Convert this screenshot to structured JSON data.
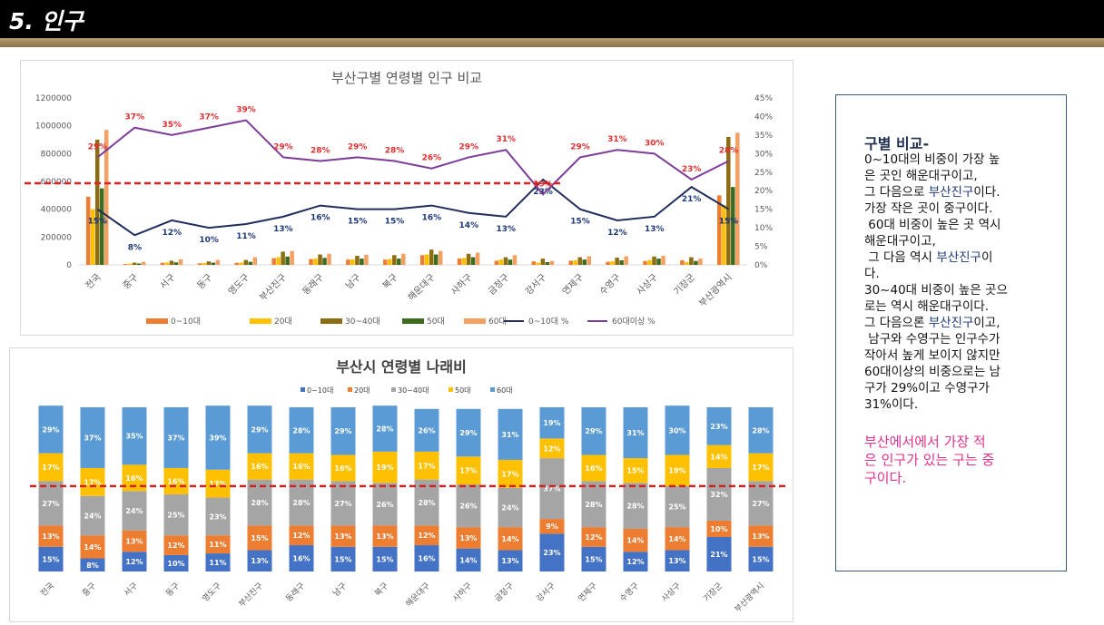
{
  "header": {
    "title": "5. 인구"
  },
  "districts": [
    "전국",
    "중구",
    "서구",
    "동구",
    "영도구",
    "부산진구",
    "동래구",
    "남구",
    "북구",
    "해운대구",
    "사하구",
    "금정구",
    "강서구",
    "연제구",
    "수영구",
    "사상구",
    "기장군",
    "부산광역시"
  ],
  "chart1": {
    "title": "부산구별 연령별 인구 비교",
    "y_left_ticks": [
      "1200000",
      "1000000",
      "800000",
      "600000",
      "400000",
      "200000",
      "0"
    ],
    "y_right_ticks": [
      "45%",
      "40%",
      "35%",
      "30%",
      "25%",
      "20%",
      "15%",
      "10%",
      "5%",
      "0%"
    ],
    "legend": [
      "0~10대",
      "20대",
      "30~40대",
      "50대",
      "60대",
      "0~10대 %",
      "60대이상 %"
    ]
  },
  "chart2": {
    "title": "부산시 연령별 나래비",
    "legend": [
      "0~10대",
      "20대",
      "30~40대",
      "50대",
      "60대"
    ]
  },
  "chart_data": [
    {
      "type": "bar",
      "title": "부산구별 연령별 인구 비교",
      "categories": [
        "전국",
        "중구",
        "서구",
        "동구",
        "영도구",
        "부산진구",
        "동래구",
        "남구",
        "북구",
        "해운대구",
        "사하구",
        "금정구",
        "강서구",
        "연제구",
        "수영구",
        "사상구",
        "기장군",
        "부산광역시"
      ],
      "ylim": [
        0,
        1200000
      ],
      "y2lim": [
        0,
        45
      ],
      "reference_line_value_right": 22,
      "series": [
        {
          "name": "0~10대",
          "color": "#ed7d31",
          "values": [
            490000,
            6000,
            15000,
            11000,
            15000,
            48000,
            42000,
            38000,
            38000,
            70000,
            45000,
            30000,
            25000,
            30000,
            22000,
            28000,
            33000,
            500000
          ]
        },
        {
          "name": "20대",
          "color": "#ffc000",
          "values": [
            400000,
            9000,
            17000,
            13000,
            16000,
            55000,
            45000,
            40000,
            42000,
            75000,
            50000,
            38000,
            15000,
            33000,
            27000,
            35000,
            20000,
            430000
          ]
        },
        {
          "name": "30~40대",
          "color": "#8c6d14",
          "values": [
            900000,
            16000,
            30000,
            25000,
            35000,
            95000,
            75000,
            65000,
            70000,
            110000,
            80000,
            55000,
            45000,
            55000,
            52000,
            60000,
            55000,
            920000
          ]
        },
        {
          "name": "50대",
          "color": "#3d6b1f",
          "values": [
            550000,
            10000,
            18000,
            16000,
            22000,
            60000,
            50000,
            45000,
            45000,
            75000,
            55000,
            38000,
            20000,
            38000,
            33000,
            45000,
            28000,
            560000
          ]
        },
        {
          "name": "60대",
          "color": "#f4a062",
          "values": [
            970000,
            22000,
            40000,
            36000,
            55000,
            100000,
            80000,
            72000,
            80000,
            100000,
            88000,
            70000,
            28000,
            62000,
            62000,
            65000,
            45000,
            950000
          ]
        },
        {
          "name": "0~10대 %",
          "type": "line",
          "axis": "right",
          "color": "#1f2d5c",
          "values": [
            15,
            8,
            12,
            10,
            11,
            13,
            16,
            15,
            15,
            16,
            14,
            13,
            23,
            15,
            12,
            13,
            21,
            15
          ],
          "labels": [
            "15%",
            "8%",
            "12%",
            "10%",
            "11%",
            "13%",
            "16%",
            "15%",
            "15%",
            "16%",
            "14%",
            "13%",
            "23%",
            "15%",
            "12%",
            "13%",
            "21%",
            "15%"
          ]
        },
        {
          "name": "60대이상 %",
          "type": "line",
          "axis": "right",
          "color": "#7d3c98",
          "values": [
            29,
            37,
            35,
            37,
            39,
            29,
            28,
            29,
            28,
            26,
            29,
            31,
            19,
            29,
            31,
            30,
            23,
            28
          ],
          "labels": [
            "29%",
            "37%",
            "35%",
            "37%",
            "39%",
            "29%",
            "28%",
            "29%",
            "28%",
            "26%",
            "29%",
            "31%",
            "19%",
            "29%",
            "31%",
            "30%",
            "23%",
            "28%"
          ]
        }
      ]
    },
    {
      "type": "bar",
      "stacked": true,
      "title": "부산시 연령별 나래비",
      "categories": [
        "전국",
        "중구",
        "서구",
        "동구",
        "영도구",
        "부산진구",
        "동래구",
        "남구",
        "북구",
        "해운대구",
        "사하구",
        "금정구",
        "강서구",
        "연제구",
        "수영구",
        "사상구",
        "기장군",
        "부산광역시"
      ],
      "ylim": [
        0,
        100
      ],
      "reference_line_value": 52,
      "series": [
        {
          "name": "0~10대",
          "color": "#4472c4",
          "values": [
            15,
            8,
            12,
            10,
            11,
            13,
            16,
            15,
            15,
            16,
            14,
            13,
            23,
            15,
            12,
            13,
            21,
            15
          ]
        },
        {
          "name": "20대",
          "color": "#ed7d31",
          "values": [
            13,
            14,
            13,
            12,
            11,
            15,
            12,
            13,
            13,
            12,
            13,
            14,
            9,
            12,
            14,
            14,
            10,
            13
          ]
        },
        {
          "name": "30~40대",
          "color": "#a5a5a5",
          "values": [
            27,
            24,
            24,
            25,
            23,
            28,
            28,
            27,
            26,
            28,
            26,
            24,
            37,
            28,
            28,
            25,
            32,
            27
          ]
        },
        {
          "name": "50대",
          "color": "#ffc000",
          "values": [
            17,
            17,
            16,
            16,
            17,
            16,
            16,
            16,
            19,
            17,
            17,
            17,
            12,
            16,
            15,
            19,
            14,
            17
          ]
        },
        {
          "name": "60대",
          "color": "#5b9bd5",
          "values": [
            29,
            37,
            35,
            37,
            39,
            29,
            28,
            29,
            28,
            26,
            29,
            31,
            19,
            29,
            31,
            30,
            23,
            28
          ]
        }
      ]
    }
  ],
  "note": {
    "heading": "구별 비교-",
    "body_lines": [
      "0~10대의 비중이 가장 높",
      "은 곳인 해운대구이고,",
      "그 다음으로 부산진구이다.",
      "가장 작은 곳이 중구이다.",
      " 60대 비중이 높은 곳 역시",
      "해운대구이고,",
      " 그 다음 역시 부산진구이",
      "다.",
      "30~40대 비중이 높은 곳으",
      "로는 역시 해운대구이다.",
      "그 다음으론 부산진구이고,",
      " 남구와 수영구는 인구수가",
      "작아서 높게 보이지 않지만",
      "60대이상의 비중으로는 남",
      "구가 29%이고 수영구가",
      "31%이다."
    ],
    "pink": "부산에서에서 가장 적\n은 인구가 있는 구는 중\n구이다."
  }
}
